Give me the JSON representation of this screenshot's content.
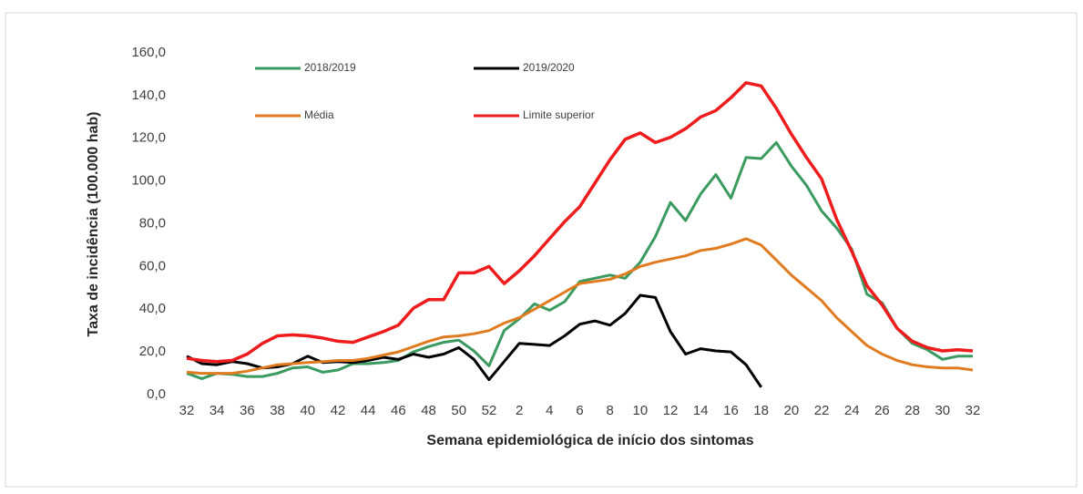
{
  "chart_data": {
    "type": "line",
    "x_label": "Semana epidemiológica de início dos sintomas",
    "y_label": "Taxa de incidência (100.000 hab)",
    "categories": [
      "32",
      null,
      "34",
      null,
      "36",
      null,
      "38",
      null,
      "40",
      null,
      "42",
      null,
      "44",
      null,
      "46",
      null,
      "48",
      null,
      "50",
      null,
      "52",
      null,
      "2",
      null,
      "4",
      null,
      "6",
      null,
      "8",
      null,
      "10",
      null,
      "12",
      null,
      "14",
      null,
      "16",
      null,
      "18",
      null,
      "20",
      null,
      "22",
      null,
      "24",
      null,
      "26",
      null,
      "28",
      null,
      "30",
      null,
      "32"
    ],
    "series": [
      {
        "name": "2018/2019",
        "color": "#3a9a5f",
        "values": [
          10,
          7.5,
          10,
          9.5,
          8.5,
          8.5,
          10,
          12.5,
          13,
          10.5,
          11.5,
          14.5,
          14.5,
          15,
          16,
          20,
          22.5,
          24.5,
          25.5,
          20.5,
          13.5,
          30,
          35.5,
          42.5,
          39.5,
          43.5,
          53,
          54.5,
          56,
          54.5,
          62,
          74,
          90,
          81.5,
          94,
          103,
          92,
          111,
          110.5,
          118,
          107,
          98,
          86,
          78,
          68,
          47,
          43,
          31,
          24,
          21,
          16.5,
          18,
          18
        ]
      },
      {
        "name": "2019/2020",
        "color": "#000000",
        "values": [
          18,
          14.5,
          14,
          15.5,
          14.5,
          12.5,
          13,
          14.5,
          18,
          15,
          15.5,
          15,
          16,
          17.5,
          16.5,
          19,
          17.5,
          19,
          22,
          16.5,
          7,
          15.5,
          24,
          23.5,
          23,
          27.5,
          33,
          34.5,
          32.5,
          38,
          46.5,
          45.5,
          29.5,
          19,
          21.5,
          20.5,
          20,
          14,
          3.5,
          null,
          null,
          null,
          null,
          null,
          null,
          null,
          null,
          null,
          null,
          null,
          null,
          null,
          null
        ]
      },
      {
        "name": "Média",
        "color": "#e07b1f",
        "values": [
          10.5,
          10,
          10,
          10,
          11,
          12.5,
          14,
          14.5,
          15,
          15.5,
          16,
          16,
          17,
          18.5,
          20,
          22.5,
          25,
          27,
          27.5,
          28.5,
          30,
          33.5,
          36,
          40,
          44,
          48,
          52,
          53,
          54,
          56.5,
          60,
          62,
          63.5,
          65,
          67.5,
          68.5,
          70.5,
          73,
          70,
          63,
          56,
          50,
          44,
          36,
          29.5,
          23,
          19,
          16,
          14,
          13,
          12.5,
          12.5,
          11.5
        ]
      },
      {
        "name": "Limite superior",
        "color": "#ee1c1c",
        "values": [
          17,
          16,
          15.5,
          16,
          19,
          24,
          27.5,
          28,
          27.5,
          26.5,
          25,
          24.5,
          27,
          29.5,
          32.5,
          40.5,
          44.5,
          44.5,
          57,
          57,
          60,
          52,
          58,
          65,
          73,
          81,
          88,
          99,
          110,
          119.5,
          122.5,
          118,
          120.5,
          124.5,
          130,
          133,
          139,
          146,
          144.5,
          134,
          122,
          111,
          101,
          82,
          67,
          51,
          42,
          31,
          25,
          22,
          20.5,
          21,
          20.5
        ]
      }
    ],
    "ylim": [
      0,
      160
    ],
    "yticks": [
      {
        "value": 0,
        "label": "0,0"
      },
      {
        "value": 20,
        "label": "20,0"
      },
      {
        "value": 40,
        "label": "40,0"
      },
      {
        "value": 60,
        "label": "60,0"
      },
      {
        "value": 80,
        "label": "80,0"
      },
      {
        "value": 100,
        "label": "100,0"
      },
      {
        "value": 120,
        "label": "120,0"
      },
      {
        "value": 140,
        "label": "140,0"
      },
      {
        "value": 160,
        "label": "160,0"
      }
    ],
    "grid": false,
    "legend": "top-left"
  }
}
